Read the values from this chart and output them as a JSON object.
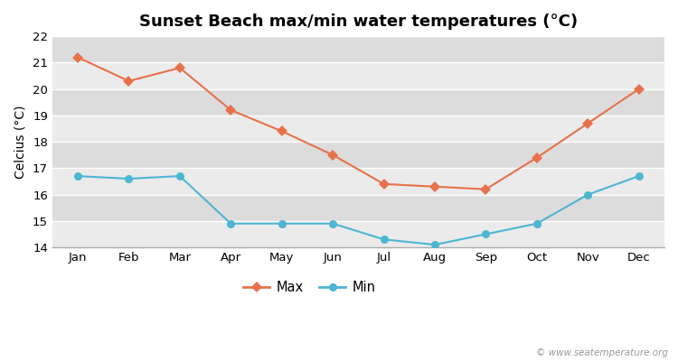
{
  "title": "Sunset Beach max/min water temperatures (°C)",
  "ylabel": "Celcius (°C)",
  "months": [
    "Jan",
    "Feb",
    "Mar",
    "Apr",
    "May",
    "Jun",
    "Jul",
    "Aug",
    "Sep",
    "Oct",
    "Nov",
    "Dec"
  ],
  "max_temps": [
    21.2,
    20.3,
    20.8,
    19.2,
    18.4,
    17.5,
    16.4,
    16.3,
    16.2,
    17.4,
    18.7,
    20.0
  ],
  "min_temps": [
    16.7,
    16.6,
    16.7,
    14.9,
    14.9,
    14.9,
    14.3,
    14.1,
    14.5,
    14.9,
    16.0,
    16.7
  ],
  "max_color": "#e8714a",
  "min_color": "#4db6d4",
  "fig_bg_color": "#ffffff",
  "plot_bg_color": "#e8e8e8",
  "band_color_light": "#ebebeb",
  "band_color_dark": "#dcdcdc",
  "grid_color": "#ffffff",
  "ylim": [
    14.0,
    22.0
  ],
  "yticks": [
    14,
    15,
    16,
    17,
    18,
    19,
    20,
    21,
    22
  ],
  "watermark": "© www.seatemperature.org",
  "legend_max": "Max",
  "legend_min": "Min",
  "title_fontsize": 13,
  "axis_label_fontsize": 10,
  "tick_fontsize": 9.5
}
